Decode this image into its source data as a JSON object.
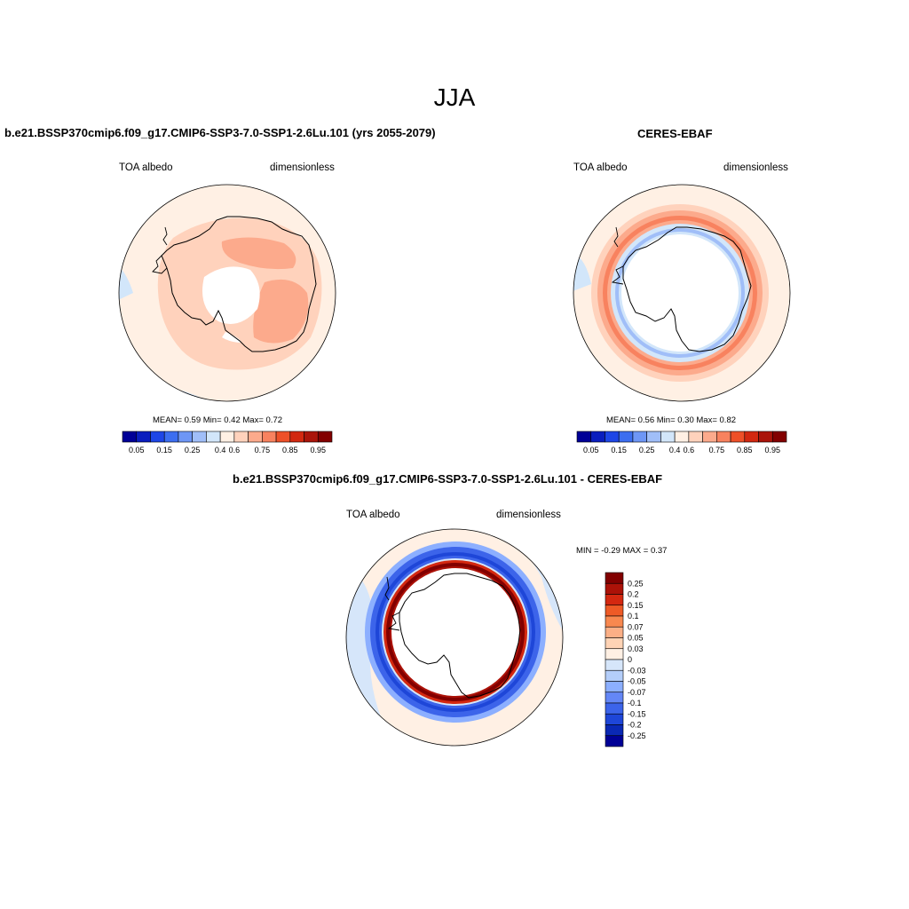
{
  "figure": {
    "title": "JJA"
  },
  "palettes": {
    "full": [
      "#000096",
      "#0a1ebe",
      "#1e46e6",
      "#3c6ef0",
      "#6e96f5",
      "#a0bef8",
      "#d2e6fa",
      "#fff0e4",
      "#ffd2bc",
      "#fcaa8c",
      "#f8825f",
      "#ee5028",
      "#d22810",
      "#aa140a",
      "#820000"
    ],
    "diff": [
      "#820000",
      "#ac1208",
      "#d42810",
      "#ee5a26",
      "#f8884f",
      "#fbaf86",
      "#ffd3b5",
      "#fff0e4",
      "#d6e6fa",
      "#b4cefa",
      "#8cafff",
      "#6487f6",
      "#3c64ea",
      "#1e46d8",
      "#0a28b4",
      "#000096"
    ]
  },
  "chart_data": [
    {
      "type": "heatmap",
      "projection": "south-polar-stereographic",
      "title": "b.e21.BSSP370cmip6.f09_g17.CMIP6-SSP3-7.0-SSP1-2.6Lu.101 (yrs 2055-2079)",
      "left_label": "TOA albedo",
      "right_label": "dimensionless",
      "stats": {
        "mean": "0.59",
        "min": "0.42",
        "max": "0.72"
      },
      "stats_text": "MEAN=   0.59  Min=   0.42  Max=   0.72",
      "colorbar": {
        "orientation": "horizontal",
        "levels": [
          0.05,
          0.1,
          0.15,
          0.2,
          0.25,
          0.3,
          0.4,
          0.5,
          0.6,
          0.7,
          0.75,
          0.8,
          0.85,
          0.9
        ],
        "labels": [
          "0.05",
          "0.15",
          "0.25",
          "0.4",
          "0.6",
          "0.75",
          "0.85",
          "0.95"
        ]
      }
    },
    {
      "type": "heatmap",
      "projection": "south-polar-stereographic",
      "title": "CERES-EBAF",
      "left_label": "TOA albedo",
      "right_label": "dimensionless",
      "stats": {
        "mean": "0.56",
        "min": "0.30",
        "max": "0.82"
      },
      "stats_text": "MEAN=   0.56  Min=   0.30  Max=   0.82",
      "colorbar": {
        "orientation": "horizontal",
        "levels": [
          0.05,
          0.1,
          0.15,
          0.2,
          0.25,
          0.3,
          0.4,
          0.5,
          0.6,
          0.7,
          0.75,
          0.8,
          0.85,
          0.9
        ],
        "labels": [
          "0.05",
          "0.15",
          "0.25",
          "0.4",
          "0.6",
          "0.75",
          "0.85",
          "0.95"
        ]
      }
    },
    {
      "type": "heatmap",
      "projection": "south-polar-stereographic",
      "title": "b.e21.BSSP370cmip6.f09_g17.CMIP6-SSP3-7.0-SSP1-2.6Lu.101 - CERES-EBAF",
      "left_label": "TOA albedo",
      "right_label": "dimensionless",
      "stats": {
        "min": "-0.29",
        "max": "0.37"
      },
      "stats_text": "MIN =  -0.29 MAX =   0.37",
      "colorbar": {
        "orientation": "vertical",
        "labels": [
          "0.25",
          "0.2",
          "0.15",
          "0.1",
          "0.07",
          "0.05",
          "0.03",
          "0",
          "-0.03",
          "-0.05",
          "-0.07",
          "-0.1",
          "-0.15",
          "-0.2",
          "-0.25"
        ]
      }
    }
  ]
}
